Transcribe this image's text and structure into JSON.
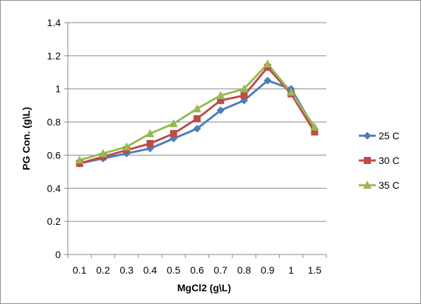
{
  "chart_data": {
    "type": "line",
    "title": "",
    "xlabel": "MgCl2 (g\\L)",
    "ylabel": "PG Con. (g\\L)",
    "categories": [
      "0.1",
      "0.2",
      "0.3",
      "0.4",
      "0.5",
      "0.6",
      "0.7",
      "0.8",
      "0.9",
      "1",
      "1.5"
    ],
    "ylim": [
      0,
      1.4
    ],
    "yticks": [
      "0",
      "0.2",
      "0.4",
      "0.6",
      "0.8",
      "1",
      "1.2",
      "1.4"
    ],
    "grid": "horizontal",
    "legend_position": "right",
    "series": [
      {
        "name": "25 C",
        "color": "#4a7ebb",
        "marker": "diamond",
        "values": [
          0.55,
          0.58,
          0.61,
          0.64,
          0.7,
          0.76,
          0.87,
          0.93,
          1.05,
          1.0,
          0.76
        ]
      },
      {
        "name": "30 C",
        "color": "#be4b48",
        "marker": "square",
        "values": [
          0.55,
          0.59,
          0.63,
          0.67,
          0.73,
          0.82,
          0.93,
          0.96,
          1.13,
          0.97,
          0.74
        ]
      },
      {
        "name": "35 C",
        "color": "#98b954",
        "marker": "triangle",
        "values": [
          0.57,
          0.61,
          0.65,
          0.73,
          0.79,
          0.88,
          0.96,
          1.0,
          1.15,
          0.98,
          0.77
        ]
      }
    ]
  }
}
